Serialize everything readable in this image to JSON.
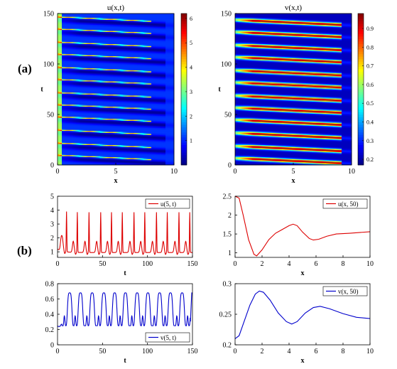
{
  "labels": {
    "a": "(a)",
    "b": "(b)"
  },
  "chart_data": [
    {
      "id": "u-heatmap",
      "type": "heatmap",
      "title": "u(x,t)",
      "xlabel": "x",
      "ylabel": "t",
      "xlim": [
        0,
        10
      ],
      "ylim": [
        0,
        150
      ],
      "xticks": [
        0,
        5,
        10
      ],
      "yticks": [
        0,
        50,
        100,
        150
      ],
      "colorbar": {
        "range": [
          0,
          6.2
        ],
        "ticks": [
          "1",
          "2",
          "3",
          "4",
          "5",
          "6"
        ],
        "tick_values": [
          1,
          2,
          3,
          4,
          5,
          6
        ],
        "colormap": "jet"
      },
      "stripe_t0": [
        10,
        22,
        35,
        48,
        60,
        72,
        85,
        97,
        110,
        122,
        135,
        147
      ]
    },
    {
      "id": "v-heatmap",
      "type": "heatmap",
      "title": "v(x,t)",
      "xlabel": "x",
      "ylabel": "t",
      "xlim": [
        0,
        10
      ],
      "ylim": [
        0,
        150
      ],
      "xticks": [
        0,
        5,
        10
      ],
      "yticks": [
        0,
        50,
        100,
        150
      ],
      "colorbar": {
        "range": [
          0.17,
          0.98
        ],
        "ticks": [
          "0.2",
          "0.3",
          "0.4",
          "0.5",
          "0.6",
          "0.7",
          "0.8",
          "0.9"
        ],
        "tick_values": [
          0.2,
          0.3,
          0.4,
          0.5,
          0.6,
          0.7,
          0.8,
          0.9
        ],
        "colormap": "jet"
      },
      "stripe_t0": [
        10,
        22,
        35,
        48,
        60,
        72,
        85,
        97,
        110,
        122,
        135,
        147
      ]
    },
    {
      "id": "u-time",
      "type": "line",
      "xlabel": "t",
      "xlim": [
        0,
        150
      ],
      "ylim": [
        0.6,
        5
      ],
      "xticks": [
        0,
        50,
        100,
        150
      ],
      "yticks": [
        1,
        2,
        3,
        4,
        5
      ],
      "legend": "u(5, t)",
      "legend_position": "top-right",
      "color": "#dd0000",
      "spike_t": [
        10,
        22,
        35,
        48,
        60,
        72,
        85,
        97,
        110,
        122,
        135,
        147
      ],
      "spike_peak": 3.9,
      "secondary_peak": 1.8,
      "trough": 0.9
    },
    {
      "id": "u-space",
      "type": "line",
      "xlabel": "x",
      "xlim": [
        0,
        10
      ],
      "ylim": [
        0.88,
        2.5
      ],
      "xticks": [
        0,
        2,
        4,
        6,
        8,
        10
      ],
      "yticks": [
        1,
        1.5,
        2,
        2.5
      ],
      "legend": "u(x, 50)",
      "legend_position": "top-right",
      "color": "#dd0000",
      "points": [
        [
          0,
          2.5
        ],
        [
          0.3,
          2.45
        ],
        [
          0.6,
          2.0
        ],
        [
          1.0,
          1.35
        ],
        [
          1.4,
          0.96
        ],
        [
          1.6,
          0.92
        ],
        [
          2.0,
          1.08
        ],
        [
          2.5,
          1.35
        ],
        [
          3.0,
          1.52
        ],
        [
          3.5,
          1.62
        ],
        [
          4.0,
          1.72
        ],
        [
          4.3,
          1.76
        ],
        [
          4.6,
          1.72
        ],
        [
          5.0,
          1.55
        ],
        [
          5.5,
          1.38
        ],
        [
          5.8,
          1.34
        ],
        [
          6.2,
          1.36
        ],
        [
          6.8,
          1.44
        ],
        [
          7.5,
          1.5
        ],
        [
          8.5,
          1.52
        ],
        [
          10,
          1.56
        ]
      ]
    },
    {
      "id": "v-time",
      "type": "line",
      "xlabel": "t",
      "xlim": [
        0,
        150
      ],
      "ylim": [
        0,
        0.8
      ],
      "xticks": [
        0,
        50,
        100,
        150
      ],
      "yticks": [
        0,
        0.2,
        0.4,
        0.6,
        0.8
      ],
      "legend": "v(5, t)",
      "legend_position": "bottom-right",
      "color": "#0000cc",
      "cycle_t": [
        10,
        22,
        35,
        48,
        60,
        72,
        85,
        97,
        110,
        122,
        135,
        147
      ],
      "plateau": 0.68,
      "trough": 0.26,
      "shoulder": 0.38
    },
    {
      "id": "v-space",
      "type": "line",
      "xlabel": "x",
      "xlim": [
        0,
        10
      ],
      "ylim": [
        0.2,
        0.3
      ],
      "xticks": [
        0,
        2,
        4,
        6,
        8,
        10
      ],
      "yticks": [
        0.2,
        0.25,
        0.3
      ],
      "legend": "v(x, 50)",
      "legend_position": "top-right",
      "color": "#0000cc",
      "points": [
        [
          0,
          0.21
        ],
        [
          0.3,
          0.215
        ],
        [
          0.7,
          0.24
        ],
        [
          1.1,
          0.265
        ],
        [
          1.5,
          0.283
        ],
        [
          1.8,
          0.288
        ],
        [
          2.1,
          0.286
        ],
        [
          2.6,
          0.273
        ],
        [
          3.2,
          0.252
        ],
        [
          3.8,
          0.238
        ],
        [
          4.2,
          0.234
        ],
        [
          4.6,
          0.238
        ],
        [
          5.2,
          0.252
        ],
        [
          5.8,
          0.261
        ],
        [
          6.3,
          0.263
        ],
        [
          7.0,
          0.259
        ],
        [
          8.0,
          0.251
        ],
        [
          9.0,
          0.245
        ],
        [
          10,
          0.243
        ]
      ]
    }
  ]
}
